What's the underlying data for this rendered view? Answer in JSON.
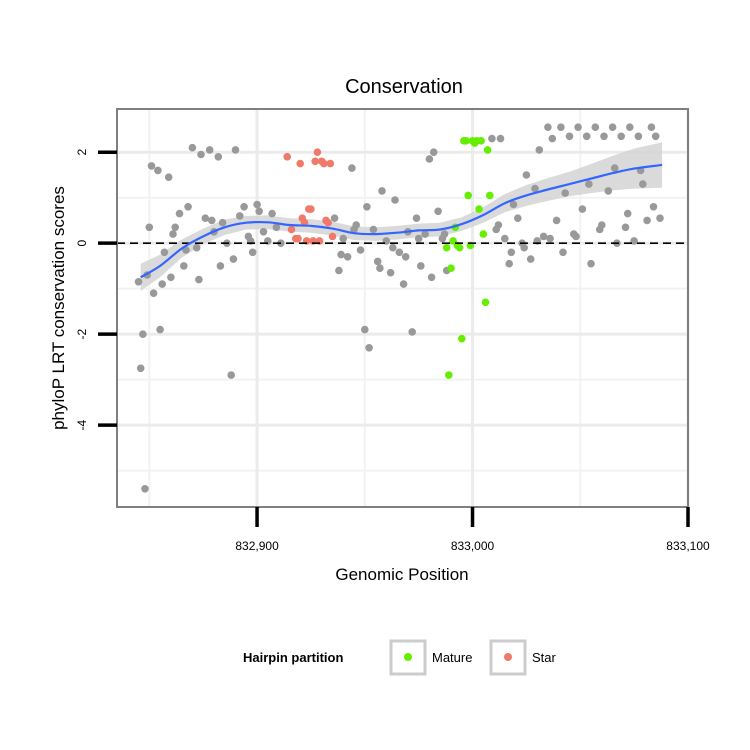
{
  "chart_data": {
    "type": "scatter",
    "title": "Conservation",
    "xlabel": "Genomic Position",
    "ylabel": "phyloP LRT conservation scores",
    "xlim": [
      832835,
      833100
    ],
    "ylim": [
      -5.8,
      2.95
    ],
    "x_ticks": [
      {
        "value": 832900,
        "label": "832,900"
      },
      {
        "value": 833000,
        "label": "833,000"
      },
      {
        "value": 833100,
        "label": "833,100"
      }
    ],
    "y_ticks": [
      {
        "value": 2,
        "label": "2"
      },
      {
        "value": 0,
        "label": "0"
      },
      {
        "value": -2,
        "label": "-2"
      },
      {
        "value": -4,
        "label": "-4"
      }
    ],
    "minor_x_gridlines": [
      832850,
      832950,
      833050
    ],
    "minor_y_gridlines": [
      1,
      -1,
      -3,
      -5
    ],
    "grid": true,
    "reference_line": {
      "y": 0,
      "style": "dashed"
    },
    "legend": {
      "title": "Hairpin partition",
      "position": "bottom",
      "entries": [
        {
          "name": "Mature",
          "color": "#66ee00"
        },
        {
          "name": "Star",
          "color": "#f07a6a"
        }
      ]
    },
    "colors": {
      "other": "#999999",
      "mature": "#66ee00",
      "star": "#f07a6a",
      "smooth_line": "#3366ff",
      "ribbon": "#d3d3d3"
    },
    "smooth": {
      "x": [
        832846,
        832855,
        832865,
        832875,
        832885,
        832895,
        832905,
        832915,
        832925,
        832935,
        832945,
        832955,
        832965,
        832975,
        832985,
        832995,
        833005,
        833015,
        833025,
        833035,
        833045,
        833055,
        833065,
        833075,
        833088
      ],
      "y": [
        -0.75,
        -0.5,
        -0.12,
        0.15,
        0.35,
        0.45,
        0.46,
        0.4,
        0.38,
        0.32,
        0.22,
        0.2,
        0.23,
        0.28,
        0.3,
        0.42,
        0.62,
        0.88,
        1.05,
        1.18,
        1.3,
        1.42,
        1.54,
        1.64,
        1.72
      ],
      "lower": [
        -1.05,
        -0.75,
        -0.32,
        -0.02,
        0.18,
        0.3,
        0.31,
        0.25,
        0.23,
        0.17,
        0.07,
        0.05,
        0.08,
        0.13,
        0.15,
        0.27,
        0.45,
        0.68,
        0.82,
        0.93,
        1.03,
        1.1,
        1.16,
        1.2,
        1.22
      ],
      "upper": [
        -0.45,
        -0.25,
        0.08,
        0.32,
        0.52,
        0.6,
        0.61,
        0.55,
        0.53,
        0.47,
        0.37,
        0.35,
        0.38,
        0.43,
        0.45,
        0.57,
        0.79,
        1.08,
        1.28,
        1.43,
        1.57,
        1.74,
        1.92,
        2.08,
        2.22
      ]
    },
    "series": [
      {
        "category": "other",
        "x": [
          832846,
          832847,
          832848,
          832849,
          832851,
          832852,
          832854,
          832855,
          832857,
          832859,
          832860,
          832862,
          832864,
          832866,
          832868,
          832870,
          832872,
          832874,
          832876,
          832878,
          832880,
          832882,
          832884,
          832886,
          832888,
          832890,
          832892,
          832894,
          832896,
          832898,
          832900,
          832901,
          832903,
          832905,
          832907,
          832909,
          832911,
          832936,
          832938,
          832940,
          832942,
          832944,
          832946,
          832948,
          832950,
          832952,
          832954,
          832956,
          832958,
          832960,
          832962,
          832964,
          832966,
          832968,
          832970,
          832972,
          832974,
          832976,
          832978,
          832980,
          832982,
          832984,
          832986,
          832988,
          833009,
          833011,
          833013,
          833015,
          833017,
          833019,
          833021,
          833023,
          833025,
          833027,
          833029,
          833031,
          833033,
          833035,
          833037,
          833039,
          833041,
          833043,
          833045,
          833047,
          833049,
          833051,
          833053,
          833055,
          833057,
          833059,
          833061,
          833063,
          833065,
          833067,
          833069,
          833071,
          833073,
          833075,
          833077,
          833079,
          833081,
          833083,
          833085,
          833087,
          832845,
          832850,
          832856,
          832861,
          832867,
          832873,
          832879,
          832883,
          832889,
          832897,
          832939,
          832945,
          832951,
          832957,
          832963,
          832969,
          832975,
          832981,
          832987,
          833012,
          833018,
          833024,
          833030,
          833036,
          833042,
          833048,
          833054,
          833060,
          833066,
          833072,
          833078,
          833084
        ],
        "y": [
          -2.75,
          -2.0,
          -5.4,
          -0.7,
          1.7,
          -1.1,
          1.6,
          -1.9,
          -0.2,
          1.45,
          -0.75,
          0.35,
          0.65,
          -0.5,
          0.8,
          2.1,
          -0.1,
          1.95,
          0.55,
          2.05,
          0.25,
          1.9,
          0.45,
          0.0,
          -2.9,
          2.05,
          0.6,
          0.8,
          0.15,
          -0.2,
          0.85,
          0.7,
          0.25,
          0.05,
          0.65,
          0.35,
          0.0,
          0.55,
          -0.6,
          0.1,
          -0.3,
          1.65,
          0.4,
          -0.15,
          -1.9,
          -2.3,
          0.3,
          -0.4,
          1.15,
          0.05,
          -0.65,
          0.95,
          -0.2,
          -0.9,
          0.25,
          -1.95,
          0.55,
          -0.5,
          0.2,
          1.85,
          2.0,
          0.7,
          0.1,
          -0.6,
          2.3,
          0.3,
          2.3,
          0.1,
          -0.45,
          0.85,
          0.55,
          0.0,
          1.5,
          -0.35,
          1.2,
          2.05,
          0.15,
          2.55,
          2.3,
          0.5,
          2.55,
          1.1,
          2.35,
          0.2,
          2.55,
          0.75,
          2.35,
          -0.45,
          2.55,
          0.3,
          2.35,
          1.15,
          2.55,
          0.0,
          2.35,
          0.35,
          2.55,
          0.05,
          2.35,
          1.3,
          0.5,
          2.55,
          2.35,
          0.55,
          -0.85,
          0.35,
          -0.9,
          0.2,
          -0.15,
          -0.8,
          0.5,
          -0.5,
          -0.35,
          0.05,
          -0.25,
          0.3,
          0.8,
          -0.55,
          -0.1,
          -0.3,
          0.1,
          -0.75,
          0.2,
          0.4,
          -0.2,
          -0.1,
          0.05,
          0.1,
          -0.2,
          0.15,
          1.3,
          0.4,
          1.65,
          0.65,
          1.6,
          0.8
        ]
      },
      {
        "category": "mature",
        "x": [
          832988,
          832989,
          832990,
          832991,
          832992,
          832993,
          832994,
          832995,
          832996,
          832997,
          832998,
          832999,
          833000,
          833001,
          833002,
          833003,
          833004,
          833005,
          833006,
          833007,
          833008
        ],
        "y": [
          -0.1,
          -2.9,
          -0.55,
          0.05,
          0.35,
          -0.05,
          -0.1,
          -2.1,
          2.25,
          2.25,
          1.05,
          -0.05,
          2.25,
          2.2,
          2.25,
          0.75,
          2.25,
          0.2,
          -1.3,
          2.05,
          1.05
        ]
      },
      {
        "category": "star",
        "x": [
          832914,
          832916,
          832918,
          832919,
          832920,
          832921,
          832922,
          832923,
          832924,
          832925,
          832926,
          832927,
          832928,
          832929,
          832930,
          832931,
          832932,
          832933,
          832934,
          832935
        ],
        "y": [
          1.9,
          0.3,
          0.1,
          0.1,
          1.75,
          0.55,
          0.45,
          0.05,
          0.75,
          0.75,
          0.05,
          1.8,
          2.0,
          0.05,
          1.8,
          1.75,
          0.5,
          0.45,
          1.75,
          0.15
        ]
      }
    ]
  }
}
